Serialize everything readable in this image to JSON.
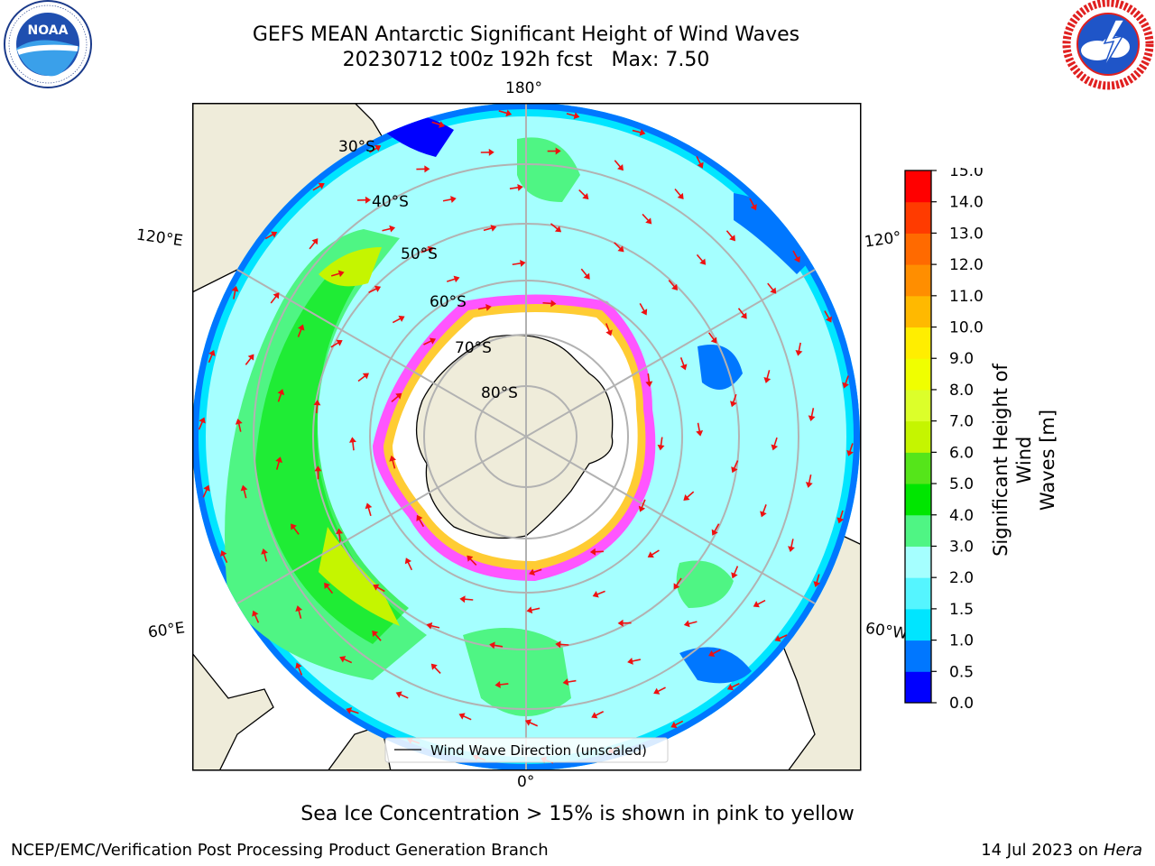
{
  "title": {
    "line1": "GEFS MEAN Antarctic Significant Height of Wind Waves",
    "line2": "20230712 t00z 192h fcst   Max: 7.50"
  },
  "logos": {
    "noaa": {
      "text": "NOAA",
      "ring_text": "NATIONAL OCEANIC AND ATMOSPHERIC ADMINISTRATION · U.S. DEPARTMENT OF COMMERCE"
    },
    "nws": {
      "ring_text": "NATIONAL WEATHER SERVICE"
    }
  },
  "map": {
    "projection": "south-polar-stereographic",
    "longitude_labels": {
      "top": "180°",
      "bottom": "0°",
      "left_upper": "120°E",
      "left_lower": "60°E",
      "right_upper": "120°",
      "right_lower": "60°W"
    },
    "latitude_labels": [
      "30°S",
      "40°S",
      "50°S",
      "60°S",
      "70°S",
      "80°S"
    ],
    "legend_label": "Wind Wave Direction (unscaled)",
    "colors": {
      "land": "#efecda",
      "ice_pink": "#ff55ff",
      "ice_yellow": "#ffcc33",
      "arrow": "#ee1111",
      "grid": "#b2b2b2"
    }
  },
  "colorbar": {
    "label": "Significant Height of Wind Waves [m]",
    "label_line1": "Significant Height of Wind",
    "label_line2": "Waves [m]",
    "ticks": [
      "15.0",
      "14.0",
      "13.0",
      "12.0",
      "11.0",
      "10.0",
      "9.0",
      "8.0",
      "7.0",
      "6.0",
      "5.0",
      "4.0",
      "3.0",
      "2.0",
      "1.5",
      "1.0",
      "0.5",
      "0.0"
    ],
    "levels_low_to_high": [
      {
        "range": "0.0-0.5",
        "color": "#0000ff"
      },
      {
        "range": "0.5-1.0",
        "color": "#0077ff"
      },
      {
        "range": "1.0-1.5",
        "color": "#00e5ff"
      },
      {
        "range": "1.5-2.0",
        "color": "#55f5ff"
      },
      {
        "range": "2.0-3.0",
        "color": "#a5ffff"
      },
      {
        "range": "3.0-4.0",
        "color": "#4ff584"
      },
      {
        "range": "4.0-5.0",
        "color": "#00e600"
      },
      {
        "range": "5.0-6.0",
        "color": "#55e51a"
      },
      {
        "range": "6.0-7.0",
        "color": "#c5f500"
      },
      {
        "range": "7.0-8.0",
        "color": "#dcff2a"
      },
      {
        "range": "8.0-9.0",
        "color": "#f0ff00"
      },
      {
        "range": "9.0-10.0",
        "color": "#ffee00"
      },
      {
        "range": "10.0-11.0",
        "color": "#ffb900"
      },
      {
        "range": "11.0-12.0",
        "color": "#ff8e00"
      },
      {
        "range": "12.0-13.0",
        "color": "#ff6a00"
      },
      {
        "range": "13.0-14.0",
        "color": "#ff3b00"
      },
      {
        "range": "14.0-15.0",
        "color": "#ff0000"
      }
    ]
  },
  "footer": {
    "note": "Sea Ice Concentration > 15% is shown in pink to yellow",
    "credit": "NCEP/EMC/Verification Post Processing Product Generation Branch",
    "date_prefix": "14 Jul 2023 on ",
    "machine": "Hera"
  }
}
